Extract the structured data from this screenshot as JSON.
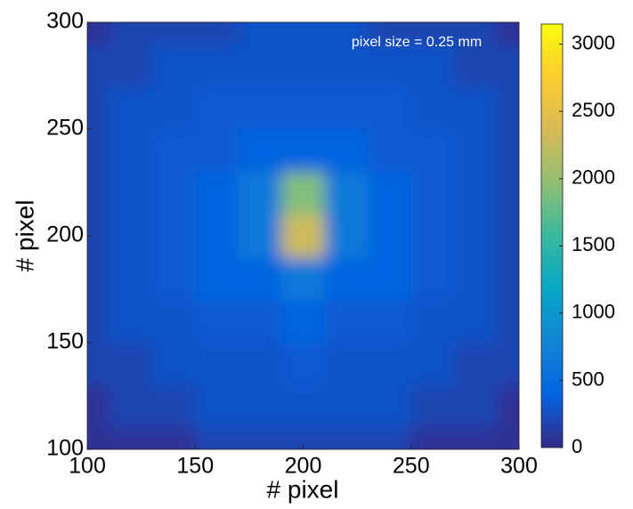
{
  "chart_data": {
    "type": "heatmap",
    "annotation": "pixel size = 0.25 mm",
    "xlabel": "# pixel",
    "ylabel": "# pixel",
    "x": [
      100,
      120,
      140,
      160,
      180,
      200,
      220,
      240,
      260,
      280,
      300
    ],
    "y": [
      100,
      120,
      140,
      160,
      180,
      200,
      220,
      240,
      260,
      280,
      300
    ],
    "z": [
      [
        60,
        60,
        60,
        180,
        180,
        180,
        180,
        180,
        60,
        60,
        60
      ],
      [
        60,
        180,
        180,
        280,
        280,
        280,
        280,
        280,
        180,
        180,
        60
      ],
      [
        180,
        180,
        280,
        280,
        280,
        330,
        280,
        280,
        280,
        180,
        180
      ],
      [
        180,
        280,
        280,
        330,
        330,
        420,
        330,
        330,
        280,
        280,
        180
      ],
      [
        180,
        280,
        330,
        420,
        420,
        650,
        420,
        420,
        330,
        280,
        180
      ],
      [
        180,
        280,
        330,
        420,
        650,
        2300,
        650,
        420,
        330,
        280,
        180
      ],
      [
        180,
        280,
        330,
        420,
        650,
        1900,
        650,
        420,
        330,
        280,
        180
      ],
      [
        180,
        280,
        330,
        330,
        420,
        420,
        420,
        330,
        330,
        280,
        180
      ],
      [
        180,
        280,
        280,
        330,
        330,
        330,
        330,
        330,
        280,
        280,
        180
      ],
      [
        180,
        180,
        280,
        280,
        280,
        280,
        280,
        280,
        280,
        180,
        180
      ],
      [
        60,
        180,
        180,
        180,
        280,
        280,
        280,
        180,
        180,
        180,
        60
      ]
    ],
    "xlim": [
      100,
      300
    ],
    "ylim": [
      100,
      300
    ],
    "xticks": [
      100,
      150,
      200,
      250,
      300
    ],
    "yticks": [
      100,
      150,
      200,
      250,
      300
    ],
    "clim": [
      0,
      3150
    ],
    "cticks": [
      0,
      500,
      1000,
      1500,
      2000,
      2500,
      3000
    ],
    "colormap": "parula"
  }
}
